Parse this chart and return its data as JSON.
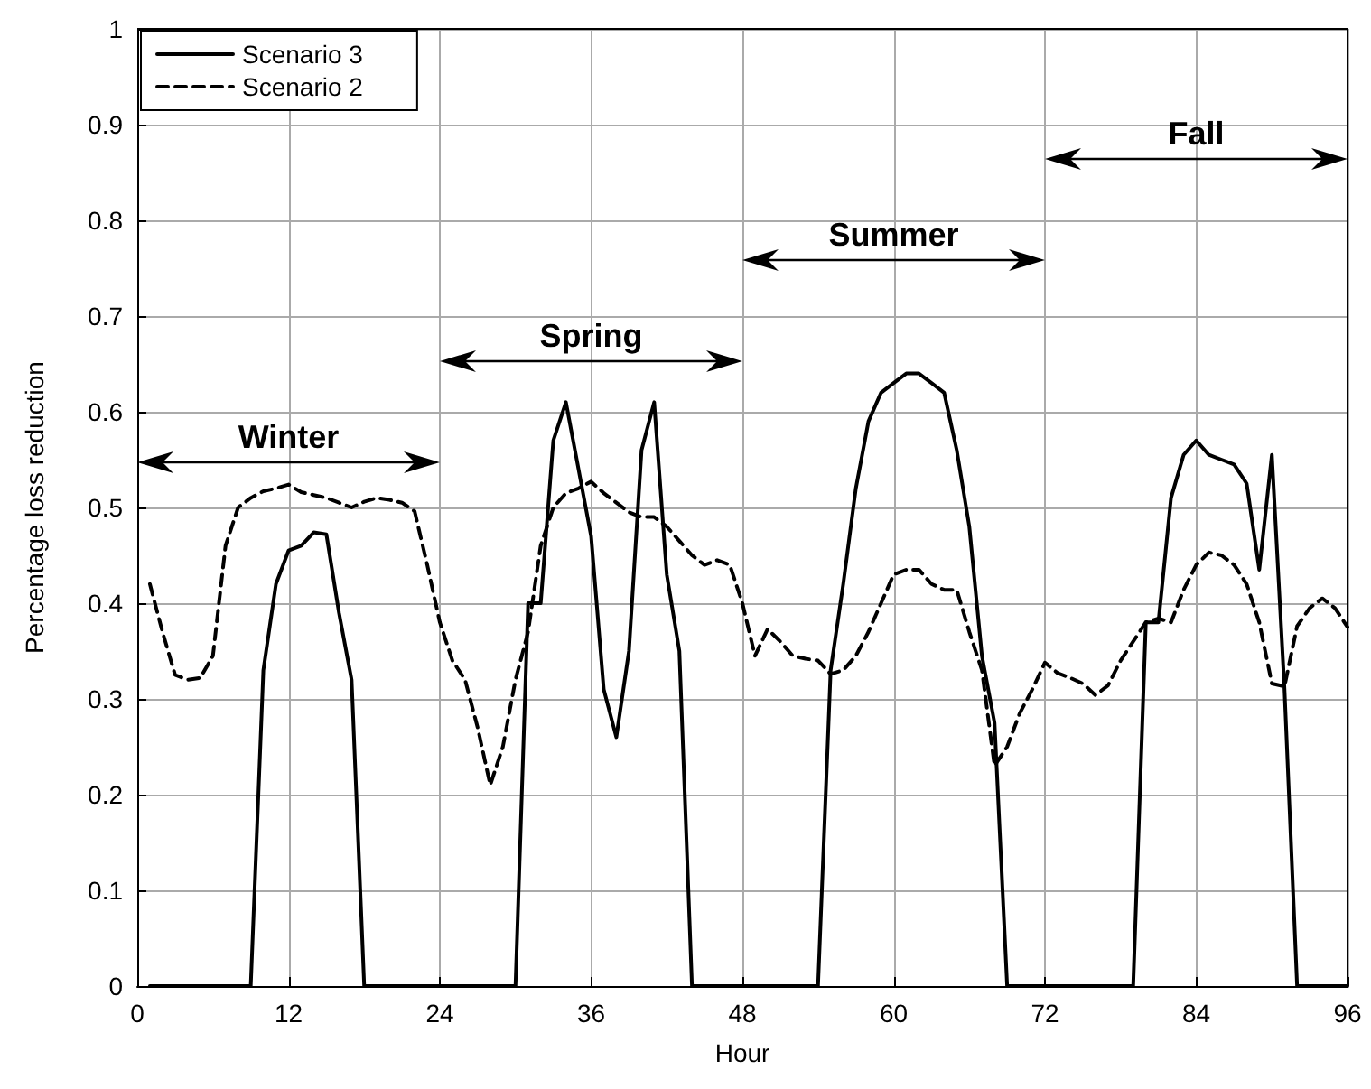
{
  "chart_data": {
    "type": "line",
    "xlabel": "Hour",
    "ylabel": "Percentage loss reduction",
    "x": [
      1,
      2,
      3,
      4,
      5,
      6,
      7,
      8,
      9,
      10,
      11,
      12,
      13,
      14,
      15,
      16,
      17,
      18,
      19,
      20,
      21,
      22,
      23,
      24,
      25,
      26,
      27,
      28,
      29,
      30,
      31,
      32,
      33,
      34,
      35,
      36,
      37,
      38,
      39,
      40,
      41,
      42,
      43,
      44,
      45,
      46,
      47,
      48,
      49,
      50,
      51,
      52,
      53,
      54,
      55,
      56,
      57,
      58,
      59,
      60,
      61,
      62,
      63,
      64,
      65,
      66,
      67,
      68,
      69,
      70,
      71,
      72,
      73,
      74,
      75,
      76,
      77,
      78,
      79,
      80,
      81,
      82,
      83,
      84,
      85,
      86,
      87,
      88,
      89,
      90,
      91,
      92,
      93,
      94,
      95,
      96
    ],
    "series": [
      {
        "name": "Scenario 3",
        "color": "#000000",
        "line_style": "solid",
        "values": [
          0,
          0,
          0,
          0,
          0,
          0,
          0,
          0,
          0,
          0.33,
          0.42,
          0.455,
          0.46,
          0.474,
          0.472,
          0.39,
          0.32,
          0,
          0,
          0,
          0,
          0,
          0,
          0,
          0,
          0,
          0,
          0,
          0,
          0,
          0.4,
          0.4,
          0.57,
          0.61,
          0.54,
          0.47,
          0.31,
          0.26,
          0.35,
          0.56,
          0.61,
          0.43,
          0.35,
          0,
          0,
          0,
          0,
          0,
          0,
          0,
          0,
          0,
          0,
          0,
          0.33,
          0.42,
          0.52,
          0.59,
          0.62,
          0.63,
          0.64,
          0.64,
          0.63,
          0.62,
          0.56,
          0.48,
          0.345,
          0.275,
          0,
          0,
          0,
          0,
          0,
          0,
          0,
          0,
          0,
          0,
          0,
          0.38,
          0.38,
          0.51,
          0.555,
          0.57,
          0.555,
          0.55,
          0.545,
          0.525,
          0.435,
          0.555,
          0.31,
          0,
          0,
          0,
          0,
          0
        ]
      },
      {
        "name": "Scenario 2",
        "color": "#000000",
        "line_style": "dashed",
        "values": [
          0.42,
          0.37,
          0.325,
          0.32,
          0.322,
          0.345,
          0.46,
          0.5,
          0.51,
          0.517,
          0.52,
          0.524,
          0.516,
          0.513,
          0.51,
          0.505,
          0.5,
          0.506,
          0.51,
          0.508,
          0.505,
          0.496,
          0.44,
          0.38,
          0.34,
          0.32,
          0.27,
          0.21,
          0.25,
          0.32,
          0.37,
          0.46,
          0.5,
          0.515,
          0.52,
          0.527,
          0.515,
          0.505,
          0.495,
          0.49,
          0.49,
          0.48,
          0.465,
          0.45,
          0.44,
          0.445,
          0.44,
          0.4,
          0.345,
          0.373,
          0.36,
          0.345,
          0.342,
          0.34,
          0.326,
          0.33,
          0.345,
          0.37,
          0.4,
          0.43,
          0.435,
          0.435,
          0.42,
          0.414,
          0.414,
          0.37,
          0.33,
          0.23,
          0.25,
          0.285,
          0.31,
          0.338,
          0.327,
          0.322,
          0.316,
          0.304,
          0.314,
          0.34,
          0.36,
          0.38,
          0.384,
          0.38,
          0.414,
          0.44,
          0.453,
          0.45,
          0.44,
          0.42,
          0.38,
          0.316,
          0.313,
          0.376,
          0.395,
          0.405,
          0.395,
          0.375
        ]
      }
    ],
    "xlim": [
      0,
      96
    ],
    "xticks": [
      0,
      12,
      24,
      36,
      48,
      60,
      72,
      84,
      96
    ],
    "ylim": [
      0,
      1
    ],
    "yticks": [
      0,
      0.1,
      0.2,
      0.3,
      0.4,
      0.5,
      0.6,
      0.7,
      0.8,
      0.9,
      1
    ],
    "grid": true,
    "legend": "top left",
    "marker": "none",
    "annotations": [
      "Winter",
      "Spring",
      "Summer",
      "Fall"
    ]
  }
}
